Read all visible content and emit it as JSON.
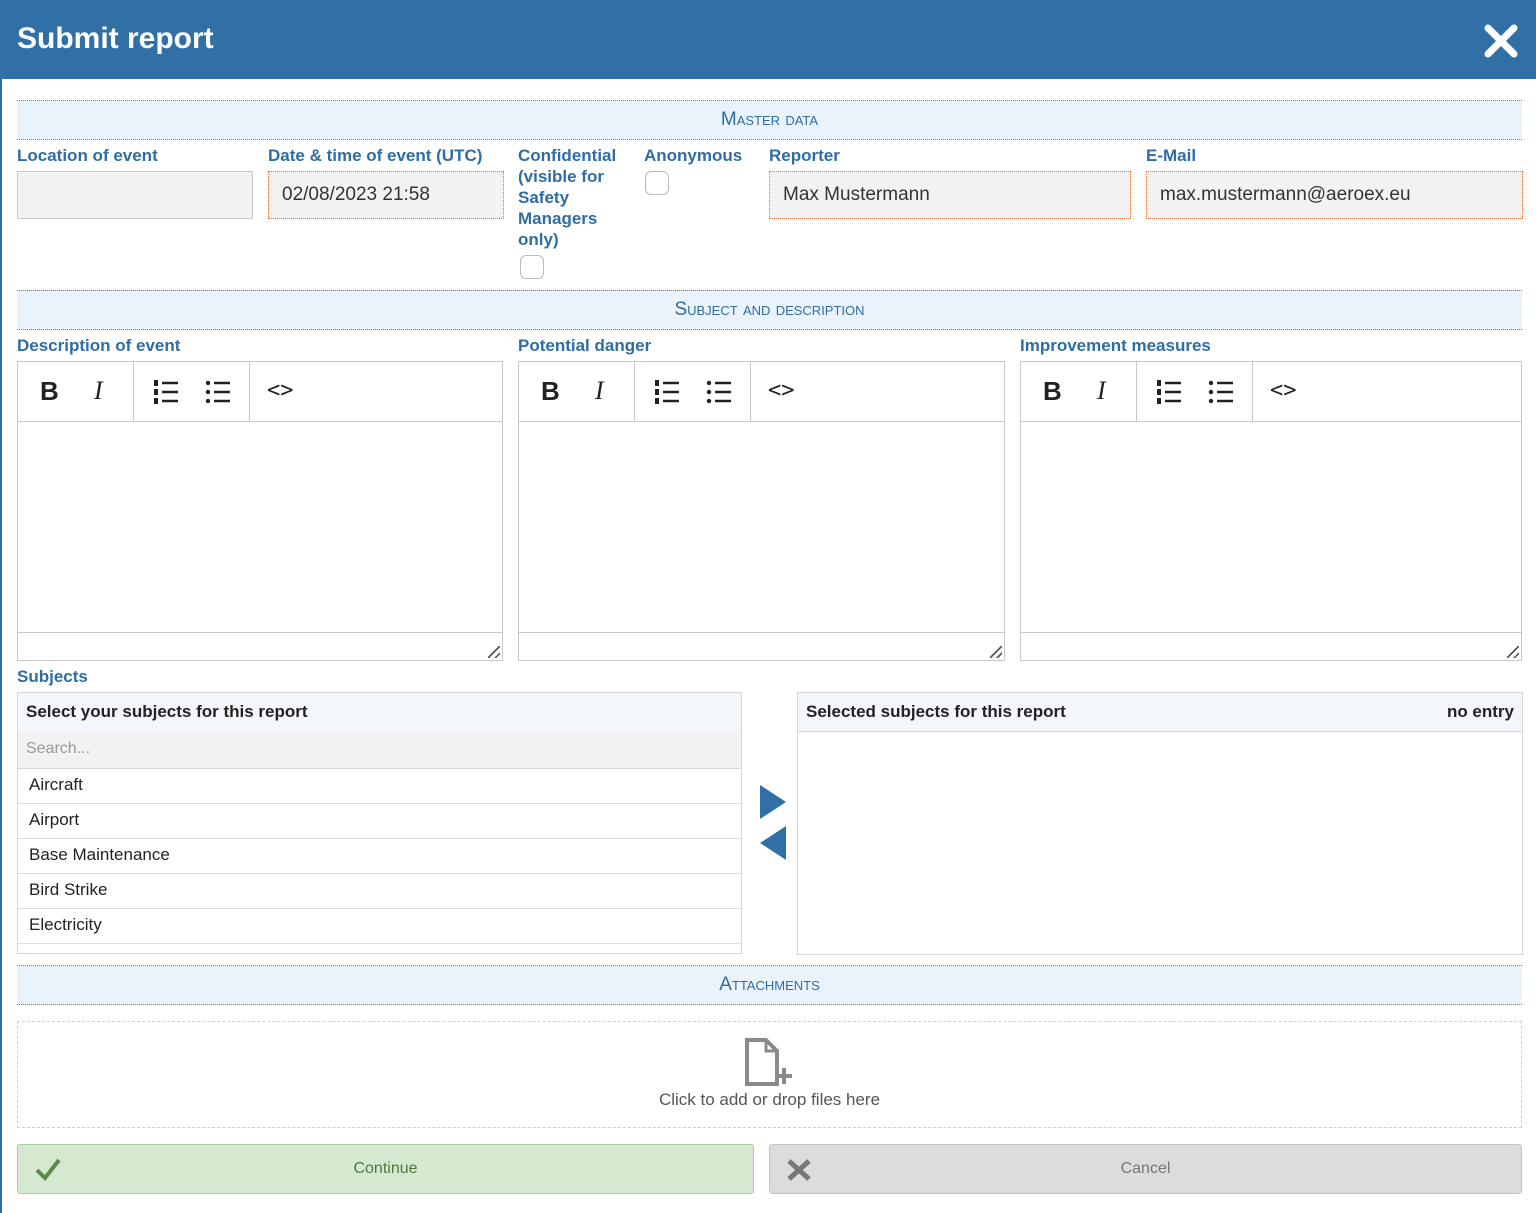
{
  "header": {
    "title": "Submit report"
  },
  "master_data": {
    "title": "Master data",
    "fields": [
      {
        "label": "Location of event"
      },
      {
        "label": "Date & time of event (UTC)",
        "value": "02/08/2023 21:58"
      },
      {
        "label": "Confidential (visible for Safety Managers only)"
      },
      {
        "label": "Anonymous"
      },
      {
        "label": "Reporter",
        "value": "Max Mustermann"
      },
      {
        "label": "E-Mail",
        "value": "max.mustermann@aeroex.eu"
      }
    ]
  },
  "subject_and_description": {
    "title": "Subject and description",
    "toolbar": [
      "B",
      "I",
      "<>"
    ],
    "editors": [
      {
        "label": "Description of event"
      },
      {
        "label": "Potential danger"
      },
      {
        "label": "Improvement measures"
      }
    ]
  },
  "subjects": {
    "label": "Subjects",
    "available": {
      "title": "Select your subjects for this report",
      "search_placeholder": "Search...",
      "items": [
        "Aircraft",
        "Airport",
        "Base Maintenance",
        "Bird Strike",
        "Electricity"
      ]
    },
    "selected": {
      "title": "Selected subjects for this report",
      "status": "no entry"
    }
  },
  "attachments": {
    "title": "Attachments",
    "dropzone": "Click to add or drop files here"
  },
  "buttons": {
    "continue": "Continue",
    "cancel": "Cancel"
  }
}
